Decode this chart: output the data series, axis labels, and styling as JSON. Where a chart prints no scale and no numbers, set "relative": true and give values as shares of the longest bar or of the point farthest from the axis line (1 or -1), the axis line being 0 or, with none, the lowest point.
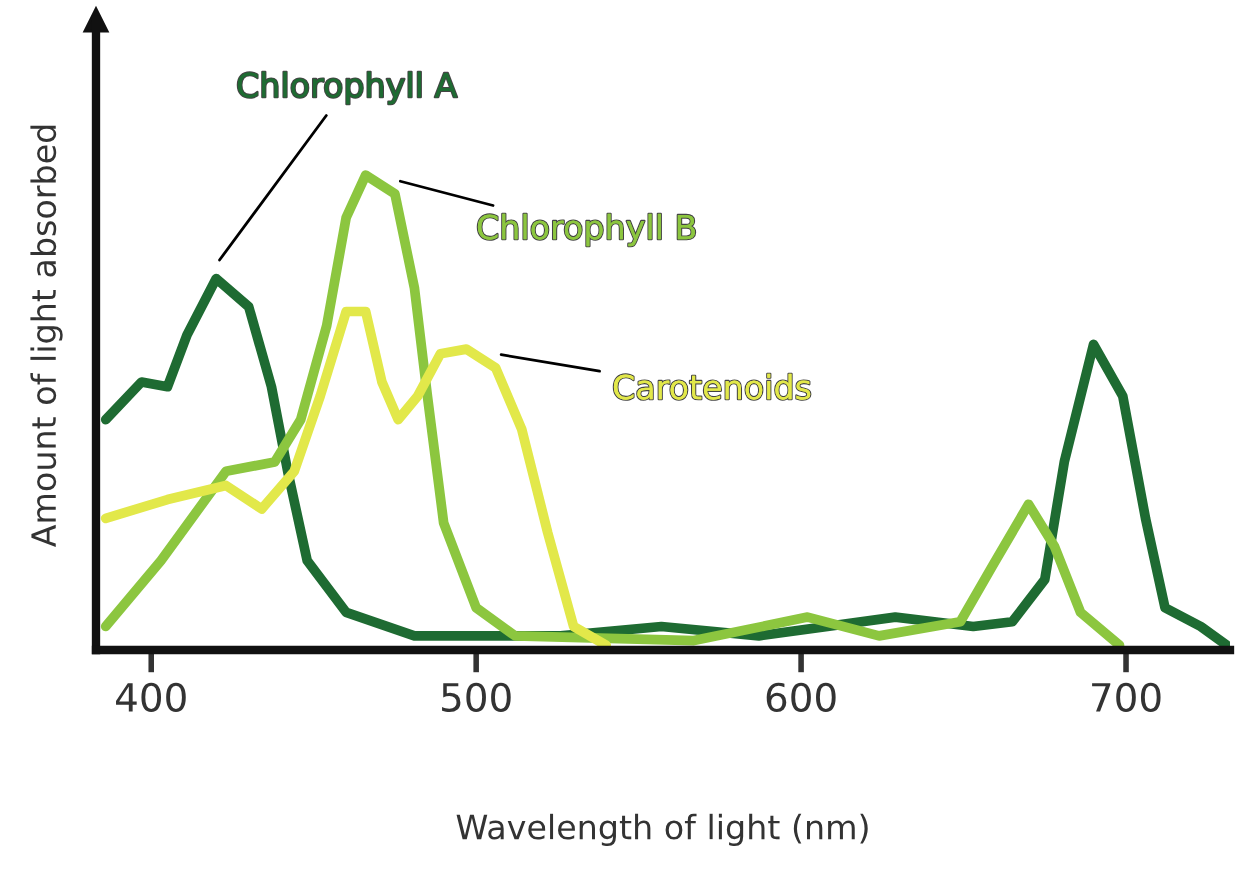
{
  "chart_data": {
    "type": "line",
    "relative": true,
    "xlabel": "Wavelength of light (nm)",
    "ylabel": "Amount of light absorbed",
    "xlim": [
      383,
      732
    ],
    "xticks": [
      400,
      500,
      600,
      700
    ],
    "grid": false,
    "legend": false,
    "marker": "none",
    "line_style": "solid",
    "series": [
      {
        "name": "Chlorophyll A",
        "color": "#1e6b32",
        "x": [
          386,
          397,
          405,
          411,
          420,
          430,
          437,
          442,
          448,
          460,
          481,
          526,
          557,
          587,
          629,
          653,
          665,
          675,
          681,
          690,
          699,
          706,
          712,
          723,
          731
        ],
        "values": [
          0.48,
          0.56,
          0.55,
          0.66,
          0.78,
          0.72,
          0.55,
          0.37,
          0.18,
          0.07,
          0.02,
          0.02,
          0.04,
          0.02,
          0.06,
          0.04,
          0.05,
          0.14,
          0.39,
          0.64,
          0.53,
          0.27,
          0.08,
          0.04,
          0.0
        ]
      },
      {
        "name": "Chlorophyll B",
        "color": "#8cc63f",
        "x": [
          386,
          403,
          423,
          438,
          446,
          454,
          460,
          466,
          475,
          481,
          485,
          490,
          500,
          512,
          567,
          602,
          624,
          649,
          659,
          670,
          678,
          686,
          698
        ],
        "values": [
          0.04,
          0.18,
          0.37,
          0.39,
          0.48,
          0.68,
          0.91,
          1.0,
          0.96,
          0.76,
          0.53,
          0.26,
          0.08,
          0.02,
          0.01,
          0.06,
          0.02,
          0.05,
          0.17,
          0.3,
          0.21,
          0.07,
          0.0
        ]
      },
      {
        "name": "Carotenoids",
        "color": "#e2e84a",
        "x": [
          386,
          405,
          423,
          434,
          444,
          452,
          460,
          466,
          471,
          476,
          482,
          489,
          497,
          506,
          514,
          522,
          530,
          540
        ],
        "values": [
          0.27,
          0.31,
          0.34,
          0.29,
          0.37,
          0.53,
          0.71,
          0.71,
          0.56,
          0.48,
          0.53,
          0.62,
          0.63,
          0.59,
          0.46,
          0.24,
          0.04,
          0.0
        ]
      }
    ]
  }
}
